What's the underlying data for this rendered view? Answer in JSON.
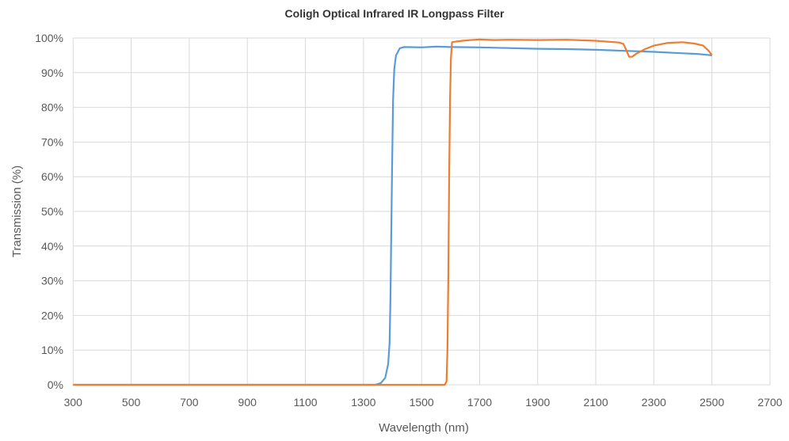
{
  "chart_data": {
    "type": "line",
    "title": "Coligh Optical Infrared IR Longpass Filter",
    "xlabel": "Wavelength (nm)",
    "ylabel": "Transmission (%)",
    "xlim": [
      300,
      2700
    ],
    "ylim": [
      0,
      100
    ],
    "x_ticks": [
      "300",
      "500",
      "700",
      "900",
      "1100",
      "1300",
      "1500",
      "1700",
      "1900",
      "2100",
      "2300",
      "2500",
      "2700"
    ],
    "y_ticks": [
      "0%",
      "10%",
      "20%",
      "30%",
      "40%",
      "50%",
      "60%",
      "70%",
      "80%",
      "90%",
      "100%"
    ],
    "grid": true,
    "legend": "none",
    "series": [
      {
        "color": "#5b9bd5",
        "points": [
          [
            300,
            0
          ],
          [
            1340,
            0
          ],
          [
            1360,
            0.5
          ],
          [
            1375,
            2
          ],
          [
            1385,
            6
          ],
          [
            1390,
            12
          ],
          [
            1393,
            25
          ],
          [
            1396,
            45
          ],
          [
            1399,
            65
          ],
          [
            1402,
            82
          ],
          [
            1406,
            91
          ],
          [
            1412,
            95
          ],
          [
            1425,
            97
          ],
          [
            1440,
            97.4
          ],
          [
            1500,
            97.3
          ],
          [
            1550,
            97.5
          ],
          [
            1600,
            97.4
          ],
          [
            1700,
            97.3
          ],
          [
            1800,
            97.1
          ],
          [
            1900,
            96.9
          ],
          [
            2000,
            96.8
          ],
          [
            2100,
            96.6
          ],
          [
            2200,
            96.3
          ],
          [
            2300,
            96.0
          ],
          [
            2400,
            95.6
          ],
          [
            2450,
            95.4
          ],
          [
            2500,
            95.0
          ]
        ]
      },
      {
        "color": "#ed7d31",
        "points": [
          [
            300,
            0
          ],
          [
            1580,
            0
          ],
          [
            1586,
            1
          ],
          [
            1589,
            10
          ],
          [
            1592,
            30
          ],
          [
            1595,
            60
          ],
          [
            1598,
            82
          ],
          [
            1601,
            94
          ],
          [
            1605,
            98.8
          ],
          [
            1620,
            99.0
          ],
          [
            1650,
            99.3
          ],
          [
            1700,
            99.6
          ],
          [
            1750,
            99.4
          ],
          [
            1800,
            99.5
          ],
          [
            1900,
            99.4
          ],
          [
            2000,
            99.5
          ],
          [
            2100,
            99.2
          ],
          [
            2180,
            98.7
          ],
          [
            2195,
            98.3
          ],
          [
            2205,
            96.5
          ],
          [
            2215,
            94.6
          ],
          [
            2225,
            94.6
          ],
          [
            2240,
            95.5
          ],
          [
            2270,
            96.8
          ],
          [
            2300,
            97.8
          ],
          [
            2350,
            98.6
          ],
          [
            2400,
            98.8
          ],
          [
            2440,
            98.4
          ],
          [
            2470,
            97.8
          ],
          [
            2490,
            96.2
          ],
          [
            2500,
            95.0
          ]
        ]
      }
    ]
  }
}
